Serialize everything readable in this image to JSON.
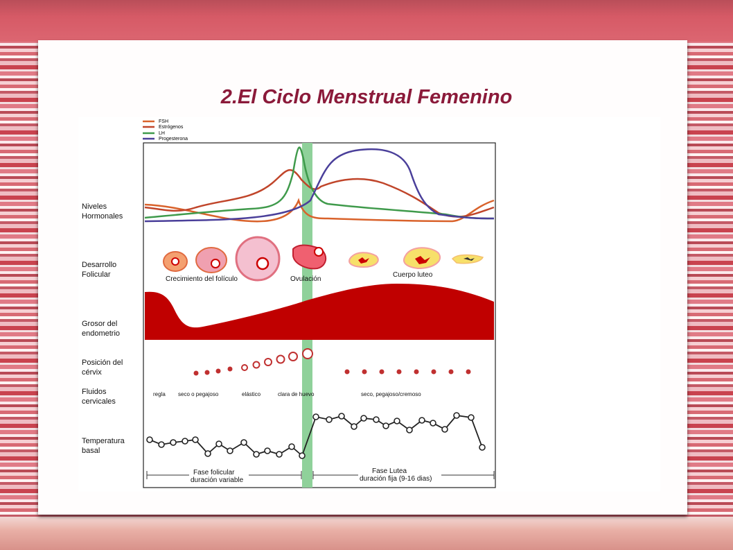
{
  "title": "2.El Ciclo Menstrual Femenino",
  "legend": [
    {
      "label": "FSH",
      "color": "#d9622b"
    },
    {
      "label": "Estrógenos",
      "color": "#c0452a"
    },
    {
      "label": "LH",
      "color": "#3f9a4b"
    },
    {
      "label": "Progesterona",
      "color": "#4a3f9a"
    }
  ],
  "row_labels": {
    "hormones": [
      "Niveles",
      "Hormonales"
    ],
    "follicular": [
      "Desarrollo",
      "Folicular"
    ],
    "endometrium": [
      "Grosor del",
      "endometrio"
    ],
    "cervix": [
      "Posición del",
      "cérvix"
    ],
    "fluids": [
      "Fluidos",
      "cervicales"
    ],
    "temperature": [
      "Temperatura",
      "basal"
    ]
  },
  "follicle_labels": {
    "growth": "Crecimiento del folículo",
    "ovulation": "Ovulación",
    "corpus": "Cuerpo luteo"
  },
  "fluid_labels": [
    "regla",
    "seco o pegajoso",
    "elástico",
    "clara de huevo",
    "seco, pegajoso/cremoso"
  ],
  "phases": {
    "follicular_name": "Fase folicular",
    "follicular_duration": "duración variable",
    "luteal_name": "Fase Lutea",
    "luteal_duration": "duración fija (9-16 dias)"
  },
  "colors": {
    "title": "#8b1a3a",
    "endometrium": "#c00000",
    "ovulation_band": "#8fd19a",
    "follicle_fill": "#f0a0b0",
    "corpus_fill": "#f7e06a"
  }
}
